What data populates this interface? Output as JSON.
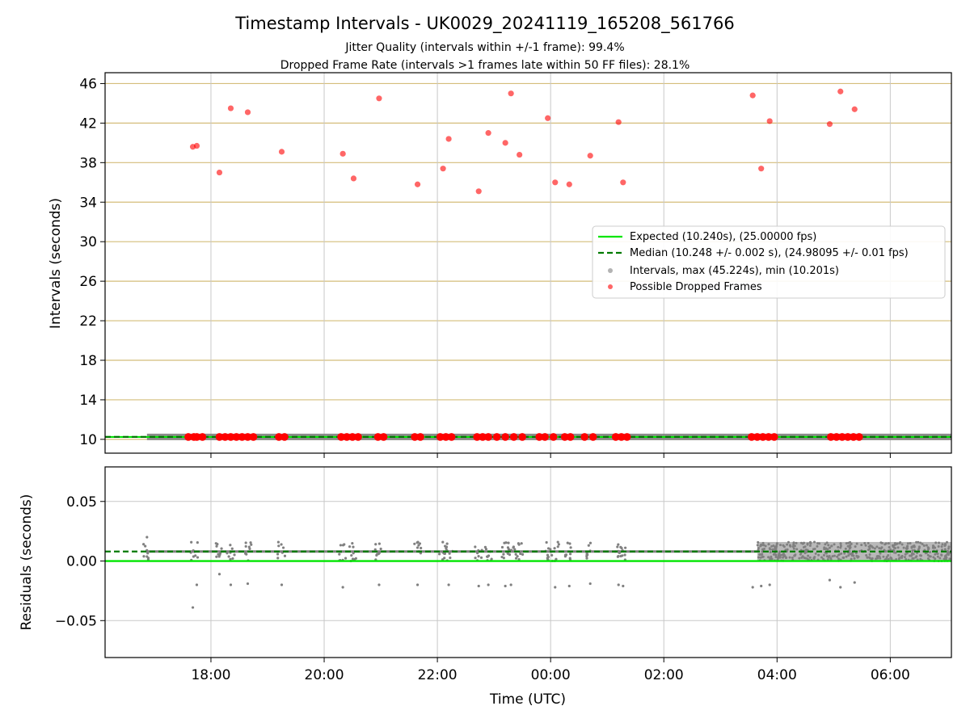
{
  "title": "Timestamp Intervals - UK0029_20241119_165208_561766",
  "subtitle_1": "Jitter Quality (intervals within +/-1 frame): 99.4%",
  "subtitle_2": "Dropped Frame Rate (intervals >1 frames late within 50 FF files): 28.1%",
  "colors": {
    "expected": "#00e600",
    "median": "#007a00",
    "intervals": "#808080",
    "dropped": "#ff0000",
    "grid": "#c8c8c8",
    "hgrid": "#d4bd7a"
  },
  "chart_data": [
    {
      "type": "scatter",
      "panel": "intervals",
      "ylabel": "Intervals (seconds)",
      "ylim": [
        8.6,
        47.1
      ],
      "yticks": [
        "10",
        "14",
        "18",
        "22",
        "26",
        "30",
        "34",
        "38",
        "42",
        "46"
      ],
      "xlim": [
        16.13,
        31.08
      ],
      "xtick_hours": [
        18,
        20,
        22,
        24,
        26,
        28,
        30
      ],
      "legend_position": "center-right",
      "legend": [
        "Expected (10.240s), (25.00000 fps)",
        "Median (10.248 +/- 0.002 s), (24.98095 +/- 0.01 fps)",
        "Intervals, max (45.224s), min (10.201s)",
        "Possible Dropped Frames"
      ],
      "expected_interval": 10.24,
      "median_interval": 10.248,
      "interval_band": {
        "x_start": 16.87,
        "x_end": 31.08,
        "y": 10.24
      },
      "dropped_frames_x_at_baseline": [
        17.6,
        17.7,
        17.75,
        17.85,
        18.15,
        18.25,
        18.35,
        18.45,
        18.55,
        18.65,
        18.75,
        19.2,
        19.3,
        20.3,
        20.4,
        20.5,
        20.6,
        20.95,
        21.05,
        21.6,
        21.7,
        22.05,
        22.15,
        22.25,
        22.7,
        22.8,
        22.9,
        23.05,
        23.2,
        23.35,
        23.5,
        23.8,
        23.9,
        24.05,
        24.25,
        24.35,
        24.6,
        24.75,
        25.15,
        25.25,
        25.35,
        27.55,
        27.65,
        27.75,
        27.85,
        27.95,
        28.95,
        29.05,
        29.15,
        29.25,
        29.35,
        29.45
      ],
      "dropped_frames_high": [
        {
          "x": 17.68,
          "y": 39.6
        },
        {
          "x": 17.75,
          "y": 39.7
        },
        {
          "x": 18.15,
          "y": 37.0
        },
        {
          "x": 18.35,
          "y": 43.5
        },
        {
          "x": 18.65,
          "y": 43.1
        },
        {
          "x": 19.25,
          "y": 39.1
        },
        {
          "x": 20.33,
          "y": 38.9
        },
        {
          "x": 20.52,
          "y": 36.4
        },
        {
          "x": 20.97,
          "y": 44.5
        },
        {
          "x": 21.65,
          "y": 35.8
        },
        {
          "x": 22.1,
          "y": 37.4
        },
        {
          "x": 22.2,
          "y": 40.4
        },
        {
          "x": 22.73,
          "y": 35.1
        },
        {
          "x": 22.9,
          "y": 41.0
        },
        {
          "x": 23.2,
          "y": 40.0
        },
        {
          "x": 23.3,
          "y": 45.0
        },
        {
          "x": 23.45,
          "y": 38.8
        },
        {
          "x": 23.95,
          "y": 42.5
        },
        {
          "x": 24.08,
          "y": 36.0
        },
        {
          "x": 24.33,
          "y": 35.8
        },
        {
          "x": 24.7,
          "y": 38.7
        },
        {
          "x": 25.2,
          "y": 42.1
        },
        {
          "x": 25.28,
          "y": 36.0
        },
        {
          "x": 27.57,
          "y": 44.8
        },
        {
          "x": 27.72,
          "y": 37.4
        },
        {
          "x": 27.87,
          "y": 42.2
        },
        {
          "x": 28.93,
          "y": 41.9
        },
        {
          "x": 29.12,
          "y": 45.2
        },
        {
          "x": 29.37,
          "y": 43.4
        }
      ]
    },
    {
      "type": "scatter",
      "panel": "residuals",
      "ylabel": "Residuals (seconds)",
      "xlabel": "Time (UTC)",
      "ylim": [
        -0.081,
        0.079
      ],
      "yticks": [
        "0.05",
        "0.00",
        "−0.05"
      ],
      "xlim": [
        16.13,
        31.08
      ],
      "xticks": [
        "18:00",
        "20:00",
        "22:00",
        "00:00",
        "02:00",
        "04:00",
        "06:00"
      ],
      "expected_residual": 0.0,
      "median_residual": 0.008,
      "clusters_x": [
        16.87,
        17.7,
        18.15,
        18.35,
        18.65,
        19.25,
        20.33,
        20.52,
        20.97,
        21.65,
        22.1,
        22.2,
        22.73,
        22.9,
        23.2,
        23.3,
        23.45,
        23.95,
        24.08,
        24.33,
        24.7,
        25.2,
        25.28
      ],
      "outliers": [
        {
          "x": 16.87,
          "y": 0.02
        },
        {
          "x": 17.68,
          "y": -0.039
        },
        {
          "x": 17.75,
          "y": -0.02
        },
        {
          "x": 18.15,
          "y": -0.011
        },
        {
          "x": 18.35,
          "y": -0.02
        },
        {
          "x": 18.65,
          "y": -0.019
        },
        {
          "x": 19.25,
          "y": -0.02
        },
        {
          "x": 20.33,
          "y": -0.022
        },
        {
          "x": 20.97,
          "y": -0.02
        },
        {
          "x": 21.65,
          "y": -0.02
        },
        {
          "x": 22.2,
          "y": -0.02
        },
        {
          "x": 22.73,
          "y": -0.021
        },
        {
          "x": 22.9,
          "y": -0.02
        },
        {
          "x": 23.2,
          "y": -0.021
        },
        {
          "x": 23.3,
          "y": -0.02
        },
        {
          "x": 24.08,
          "y": -0.022
        },
        {
          "x": 24.33,
          "y": -0.021
        },
        {
          "x": 24.7,
          "y": -0.019
        },
        {
          "x": 25.2,
          "y": -0.02
        },
        {
          "x": 25.28,
          "y": -0.021
        },
        {
          "x": 27.57,
          "y": -0.022
        },
        {
          "x": 27.72,
          "y": -0.021
        },
        {
          "x": 27.87,
          "y": -0.02
        },
        {
          "x": 28.93,
          "y": -0.016
        },
        {
          "x": 29.12,
          "y": -0.022
        },
        {
          "x": 29.37,
          "y": -0.018
        }
      ],
      "dense_band": {
        "x_start": 27.65,
        "x_end": 31.08,
        "y_min": 0.0,
        "y_max": 0.016
      }
    }
  ]
}
